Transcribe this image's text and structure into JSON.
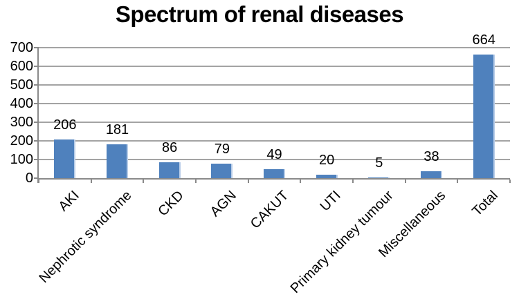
{
  "chart_data": {
    "type": "bar",
    "title": "Spectrum of renal diseases",
    "categories": [
      "AKI",
      "Nephrotic syndrome",
      "CKD",
      "AGN",
      "CAKUT",
      "UTI",
      "Primary kidney tumour",
      "Miscellaneous",
      "Total"
    ],
    "values": [
      206,
      181,
      86,
      79,
      49,
      20,
      5,
      38,
      664
    ],
    "xlabel": "",
    "ylabel": "",
    "ylim": [
      0,
      700
    ],
    "yticks": [
      0,
      100,
      200,
      300,
      400,
      500,
      600,
      700
    ],
    "grid": "horizontal",
    "legend": "none",
    "data_labels_shown": true,
    "colors": {
      "bar": "#4f81bd",
      "bar_highlight": "#b7cce8",
      "gridline": "#a3a3a3",
      "axis": "#8a8a8a",
      "text": "#000000",
      "background": "#ffffff"
    }
  }
}
